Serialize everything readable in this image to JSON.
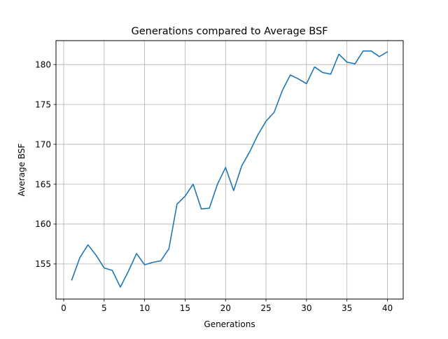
{
  "chart_data": {
    "type": "line",
    "title": "Generations compared to Average BSF",
    "xlabel": "Generations",
    "ylabel": "Average BSF",
    "xlim": [
      -0.95,
      41.95
    ],
    "ylim": [
      150.6,
      183.0
    ],
    "xticks": [
      0,
      5,
      10,
      15,
      20,
      25,
      30,
      35,
      40
    ],
    "yticks": [
      155,
      160,
      165,
      170,
      175,
      180
    ],
    "grid": true,
    "colors": {
      "line": "#1f77b4",
      "grid": "#b0b0b0",
      "axes": "#000000"
    },
    "series": [
      {
        "x": [
          1,
          2,
          3,
          4,
          5,
          6,
          7,
          8,
          9,
          10,
          11,
          12,
          13,
          14,
          15,
          16,
          17,
          18,
          19,
          20,
          21,
          22,
          23,
          24,
          25,
          26,
          27,
          28,
          29,
          30,
          31,
          32,
          33,
          34,
          35,
          36,
          37,
          38,
          39,
          40
        ],
        "values": [
          153.0,
          155.8,
          157.4,
          156.1,
          154.5,
          154.2,
          152.1,
          154.1,
          156.3,
          154.9,
          155.2,
          155.4,
          156.9,
          162.5,
          163.5,
          165.0,
          161.9,
          162.0,
          165.0,
          167.1,
          164.2,
          167.3,
          169.1,
          171.2,
          172.9,
          174.0,
          176.7,
          178.7,
          178.2,
          177.6,
          179.7,
          179.0,
          178.8,
          181.3,
          180.3,
          180.1,
          181.7,
          181.7,
          181.0,
          181.6
        ]
      }
    ]
  }
}
